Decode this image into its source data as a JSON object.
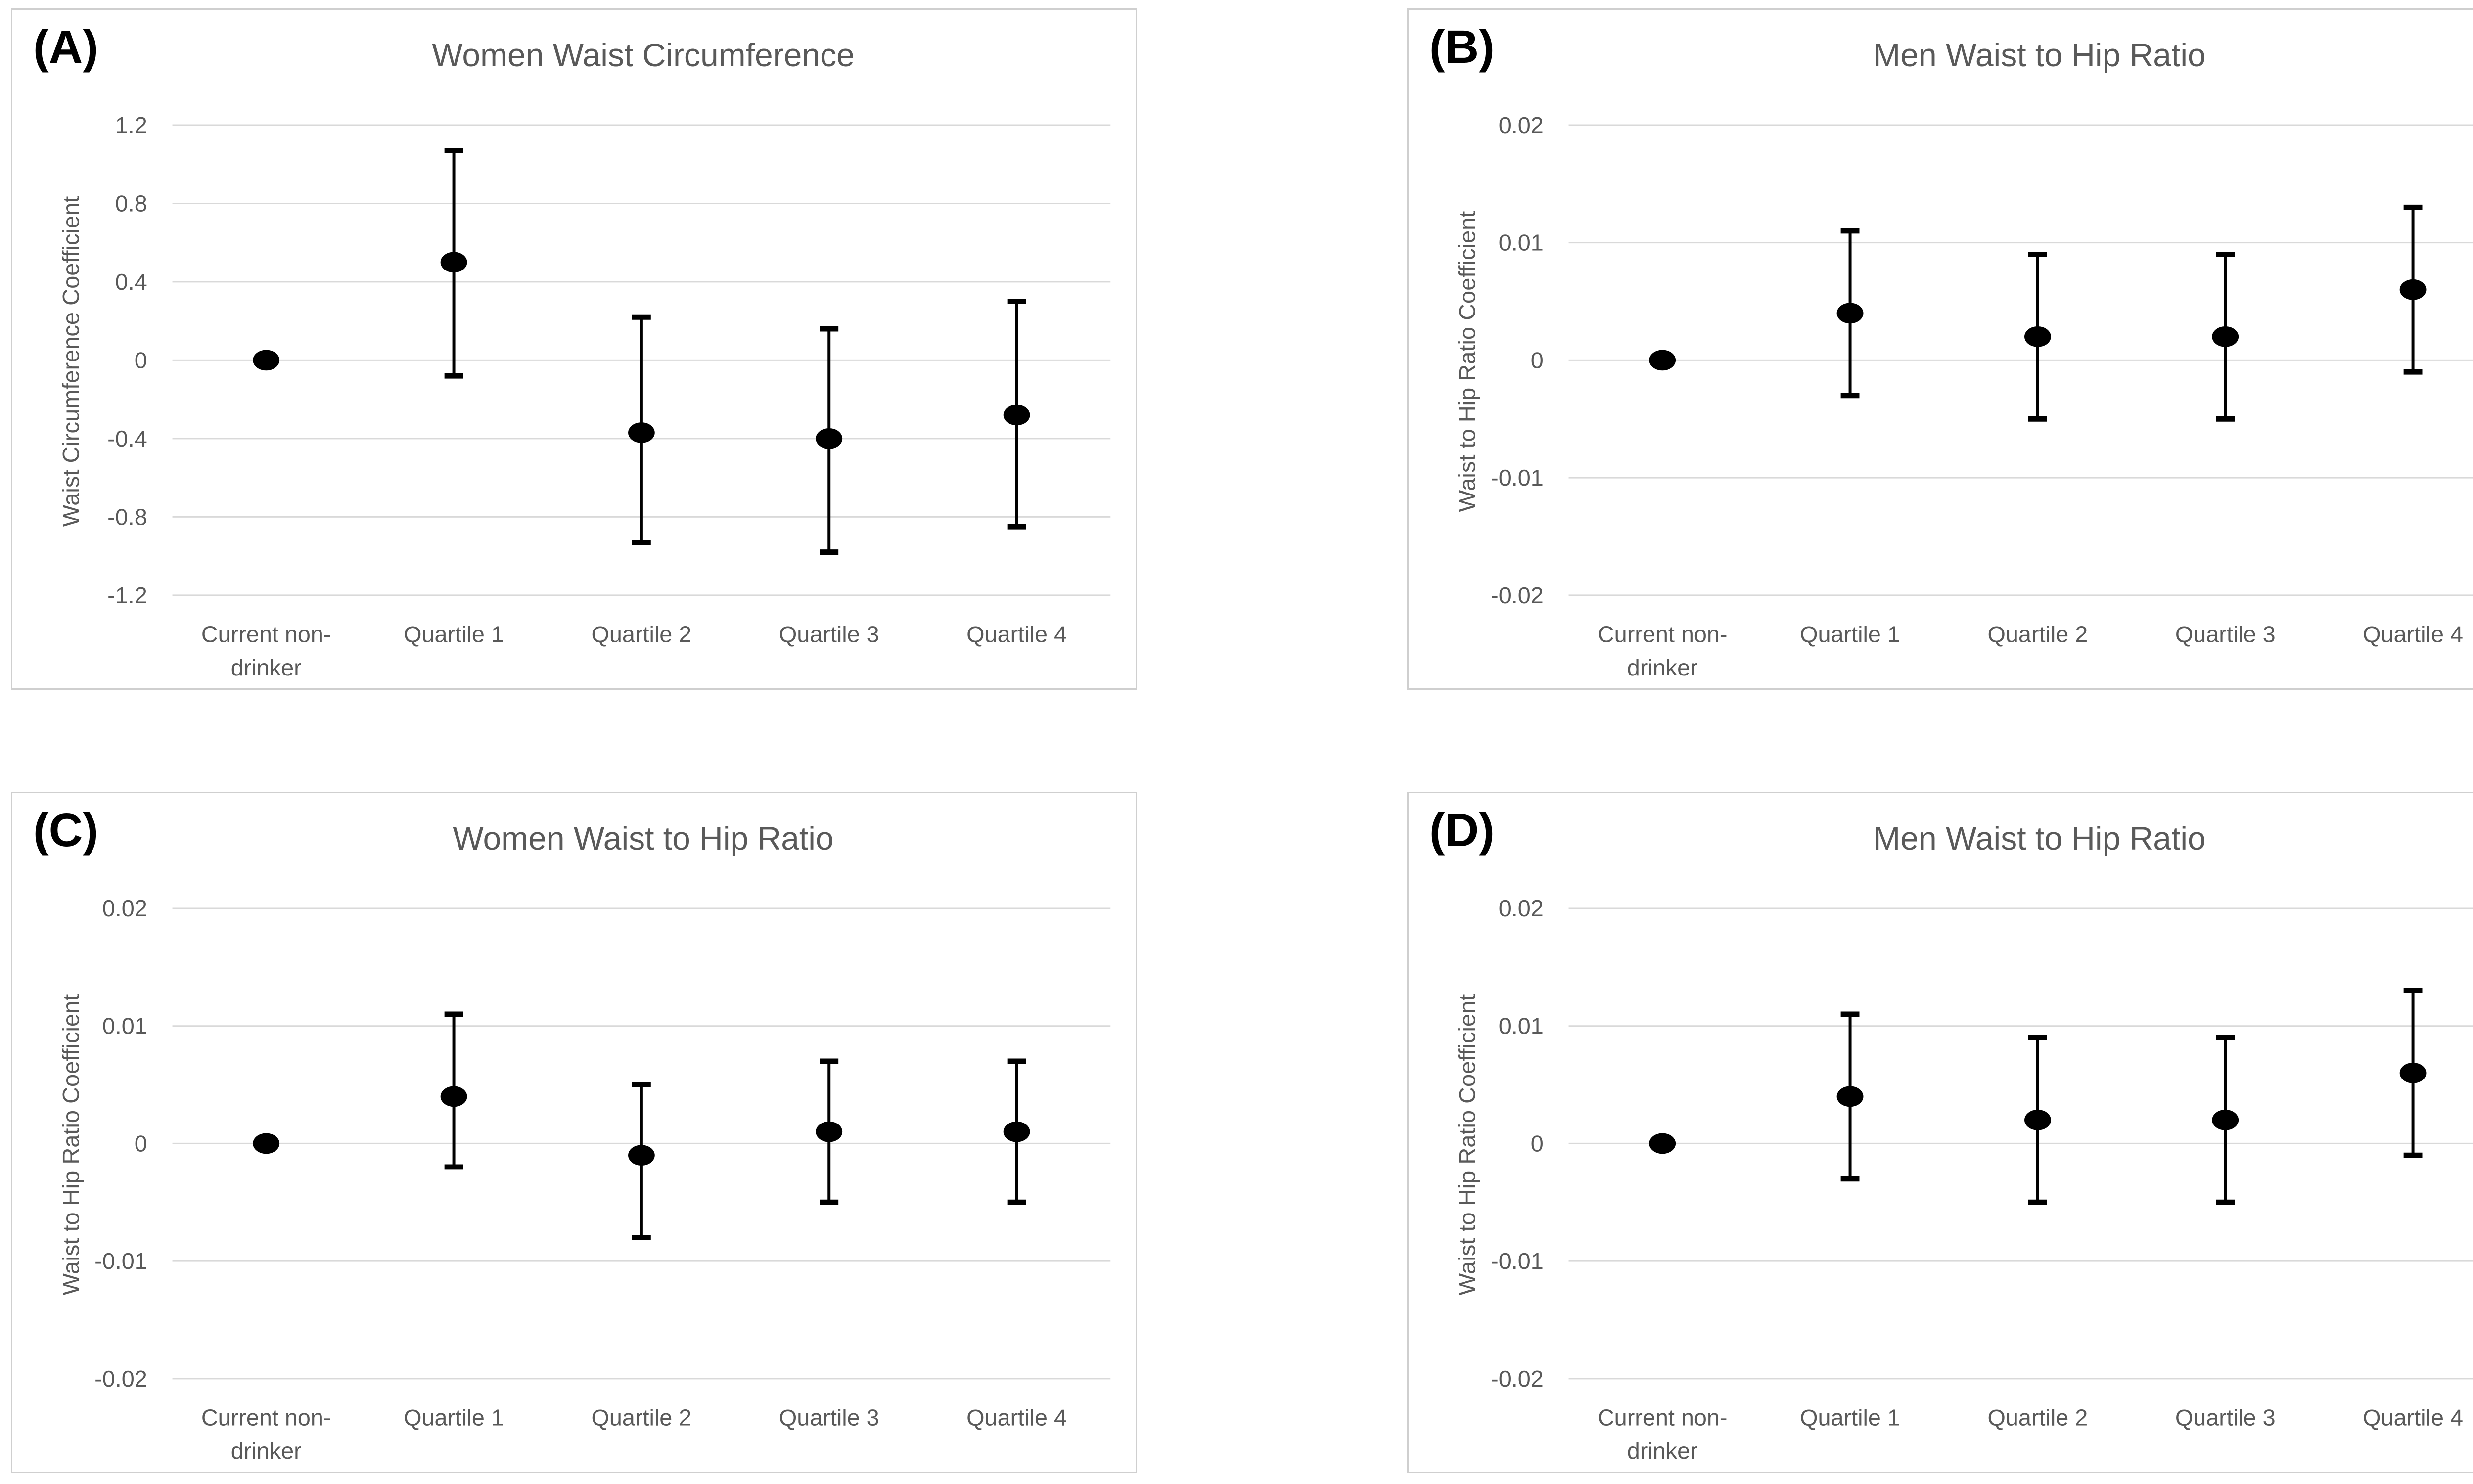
{
  "figure": {
    "layout": "2x2-panel-grid",
    "description_visible_text_only": true
  },
  "colors": {
    "marker": "#000000",
    "gridline": "#d9d9d9",
    "text": "#595959",
    "panel_border": "#cfcfcf",
    "panel_letter": "#000000",
    "background": "#ffffff"
  },
  "chart_data": [
    {
      "type": "scatter",
      "panel_label": "(A)",
      "title": "Women Waist Circumference",
      "xlabel": "",
      "ylabel": "Waist Circumference Coefficient",
      "ylim": [
        -1.2,
        1.2
      ],
      "yticks": [
        1.2,
        0.8,
        0.4,
        0,
        -0.4,
        -0.8,
        -1.2
      ],
      "ytick_labels": [
        "1.2",
        "0.8",
        "0.4",
        "0",
        "-0.4",
        "-0.8",
        "-1.2"
      ],
      "grid": "horizontal",
      "legend": "none",
      "categories": [
        "Current non-drinker",
        "Quartile 1",
        "Quartile 2",
        "Quartile 3",
        "Quartile 4"
      ],
      "category_lines": [
        [
          "Current non-",
          "drinker"
        ],
        [
          "Quartile 1"
        ],
        [
          "Quartile 2"
        ],
        [
          "Quartile 3"
        ],
        [
          "Quartile 4"
        ]
      ],
      "points": [
        {
          "category": "Current non-drinker",
          "value": 0,
          "ci": null
        },
        {
          "category": "Quartile 1",
          "value": 0.5,
          "ci": [
            -0.08,
            1.07
          ]
        },
        {
          "category": "Quartile 2",
          "value": -0.37,
          "ci": [
            -0.93,
            0.22
          ]
        },
        {
          "category": "Quartile 3",
          "value": -0.4,
          "ci": [
            -0.98,
            0.16
          ]
        },
        {
          "category": "Quartile 4",
          "value": -0.28,
          "ci": [
            -0.85,
            0.3
          ]
        }
      ]
    },
    {
      "type": "scatter",
      "panel_label": "(B)",
      "title": "Men Waist to Hip Ratio",
      "xlabel": "",
      "ylabel": "Waist to Hip Ratio Coefficient",
      "ylim": [
        -0.02,
        0.02
      ],
      "yticks": [
        0.02,
        0.01,
        0,
        -0.01,
        -0.02
      ],
      "ytick_labels": [
        "0.02",
        "0.01",
        "0",
        "-0.01",
        "-0.02"
      ],
      "grid": "horizontal",
      "legend": "none",
      "categories": [
        "Current non-drinker",
        "Quartile 1",
        "Quartile 2",
        "Quartile 3",
        "Quartile 4"
      ],
      "category_lines": [
        [
          "Current non-",
          "drinker"
        ],
        [
          "Quartile 1"
        ],
        [
          "Quartile 2"
        ],
        [
          "Quartile 3"
        ],
        [
          "Quartile 4"
        ]
      ],
      "points": [
        {
          "category": "Current non-drinker",
          "value": 0,
          "ci": null
        },
        {
          "category": "Quartile 1",
          "value": 0.004,
          "ci": [
            -0.003,
            0.011
          ]
        },
        {
          "category": "Quartile 2",
          "value": 0.002,
          "ci": [
            -0.005,
            0.009
          ]
        },
        {
          "category": "Quartile 3",
          "value": 0.002,
          "ci": [
            -0.005,
            0.009
          ]
        },
        {
          "category": "Quartile 4",
          "value": 0.006,
          "ci": [
            -0.001,
            0.013
          ]
        }
      ]
    },
    {
      "type": "scatter",
      "panel_label": "(C)",
      "title": "Women Waist to Hip Ratio",
      "xlabel": "",
      "ylabel": "Waist to Hip Ratio Coefficient",
      "ylim": [
        -0.02,
        0.02
      ],
      "yticks": [
        0.02,
        0.01,
        0,
        -0.01,
        -0.02
      ],
      "ytick_labels": [
        "0.02",
        "0.01",
        "0",
        "-0.01",
        "-0.02"
      ],
      "grid": "horizontal",
      "legend": "none",
      "categories": [
        "Current non-drinker",
        "Quartile 1",
        "Quartile 2",
        "Quartile 3",
        "Quartile 4"
      ],
      "category_lines": [
        [
          "Current non-",
          "drinker"
        ],
        [
          "Quartile 1"
        ],
        [
          "Quartile 2"
        ],
        [
          "Quartile 3"
        ],
        [
          "Quartile 4"
        ]
      ],
      "points": [
        {
          "category": "Current non-drinker",
          "value": 0,
          "ci": null
        },
        {
          "category": "Quartile 1",
          "value": 0.004,
          "ci": [
            -0.002,
            0.011
          ]
        },
        {
          "category": "Quartile 2",
          "value": -0.001,
          "ci": [
            -0.008,
            0.005
          ]
        },
        {
          "category": "Quartile 3",
          "value": 0.001,
          "ci": [
            -0.005,
            0.007
          ]
        },
        {
          "category": "Quartile 4",
          "value": 0.001,
          "ci": [
            -0.005,
            0.007
          ]
        }
      ]
    },
    {
      "type": "scatter",
      "panel_label": "(D)",
      "title": "Men Waist to Hip Ratio",
      "xlabel": "",
      "ylabel": "Waist to Hip Ratio Coefficient",
      "ylim": [
        -0.02,
        0.02
      ],
      "yticks": [
        0.02,
        0.01,
        0,
        -0.01,
        -0.02
      ],
      "ytick_labels": [
        "0.02",
        "0.01",
        "0",
        "-0.01",
        "-0.02"
      ],
      "grid": "horizontal",
      "legend": "none",
      "categories": [
        "Current non-drinker",
        "Quartile 1",
        "Quartile 2",
        "Quartile 3",
        "Quartile 4"
      ],
      "category_lines": [
        [
          "Current non-",
          "drinker"
        ],
        [
          "Quartile 1"
        ],
        [
          "Quartile 2"
        ],
        [
          "Quartile 3"
        ],
        [
          "Quartile 4"
        ]
      ],
      "points": [
        {
          "category": "Current non-drinker",
          "value": 0,
          "ci": null
        },
        {
          "category": "Quartile 1",
          "value": 0.004,
          "ci": [
            -0.003,
            0.011
          ]
        },
        {
          "category": "Quartile 2",
          "value": 0.002,
          "ci": [
            -0.005,
            0.009
          ]
        },
        {
          "category": "Quartile 3",
          "value": 0.002,
          "ci": [
            -0.005,
            0.009
          ]
        },
        {
          "category": "Quartile 4",
          "value": 0.006,
          "ci": [
            -0.001,
            0.013
          ]
        }
      ]
    }
  ]
}
